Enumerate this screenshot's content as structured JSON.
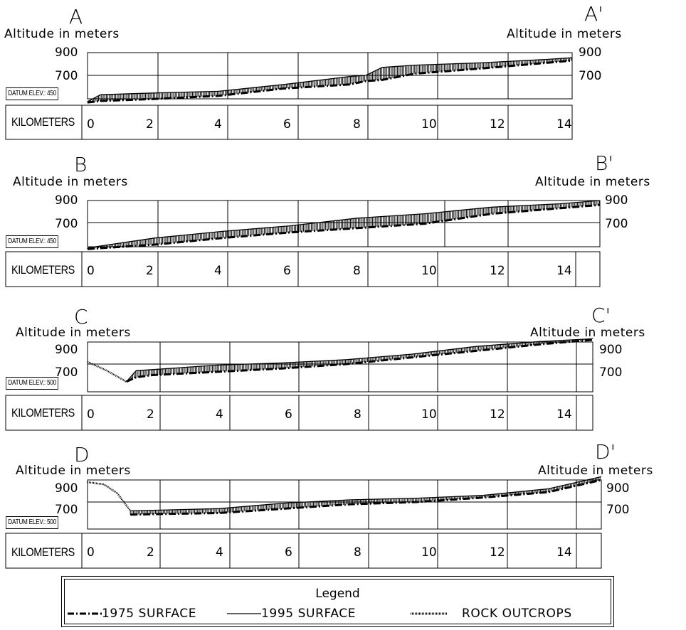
{
  "chart_data": [
    {
      "type": "line",
      "profile": "A",
      "start_label": "A",
      "end_label": "A'",
      "left_axis_label": "Altitude in meters",
      "right_axis_label": "Altitude in meters",
      "y_ticks": [
        "900",
        "700"
      ],
      "datum_label": "DATUM ELEV.: 450",
      "km_label": "KILOMETERS",
      "km_ticks": [
        "0",
        "2",
        "4",
        "6",
        "8",
        "10",
        "12",
        "14"
      ],
      "xlim": [
        0,
        14.8
      ],
      "series": [
        {
          "name": "1975 SURFACE",
          "x": [
            0,
            0.4,
            2,
            4,
            6,
            8,
            8.5,
            9.0,
            10,
            12,
            14,
            14.8
          ],
          "y": [
            462,
            475,
            492,
            520,
            585,
            620,
            650,
            660,
            715,
            760,
            810,
            830
          ]
        },
        {
          "name": "1995 SURFACE",
          "x": [
            0,
            0.4,
            2,
            4,
            6,
            8,
            8.5,
            9.0,
            10,
            12,
            14,
            14.8
          ],
          "y": [
            470,
            530,
            545,
            560,
            620,
            690,
            700,
            770,
            790,
            810,
            840,
            855
          ]
        }
      ]
    },
    {
      "type": "line",
      "profile": "B",
      "start_label": "B",
      "end_label": "B'",
      "left_axis_label": "Altitude in meters",
      "right_axis_label": "Altitude in meters",
      "y_ticks": [
        "900",
        "700"
      ],
      "datum_label": "DATUM ELEV.: 450",
      "km_label": "KILOMETERS",
      "km_ticks": [
        "0",
        "2",
        "4",
        "6",
        "8",
        "10",
        "12",
        "14"
      ],
      "xlim": [
        0,
        15.2
      ],
      "series": [
        {
          "name": "1975 SURFACE",
          "x": [
            0,
            2,
            4,
            6,
            8,
            10,
            12,
            14,
            15.2
          ],
          "y": [
            460,
            500,
            560,
            610,
            650,
            690,
            780,
            830,
            860
          ]
        },
        {
          "name": "1995 SURFACE",
          "x": [
            0,
            2,
            4,
            6,
            8,
            10,
            12,
            14,
            15.2
          ],
          "y": [
            470,
            560,
            620,
            670,
            740,
            780,
            840,
            870,
            900
          ]
        }
      ]
    },
    {
      "type": "line",
      "profile": "C",
      "start_label": "C",
      "end_label": "C'",
      "left_axis_label": "Altitude in meters",
      "right_axis_label": "Altitude in meters",
      "y_ticks": [
        "900",
        "700"
      ],
      "datum_label": "DATUM ELEV.: 500",
      "km_label": "KILOMETERS",
      "km_ticks": [
        "0",
        "2",
        "4",
        "6",
        "8",
        "10",
        "12",
        "14"
      ],
      "xlim": [
        0,
        15.6
      ],
      "series": [
        {
          "name": "ROCK OUTCROPS",
          "x": [
            0,
            0.6,
            1.2
          ],
          "y": [
            720,
            640,
            540
          ]
        },
        {
          "name": "1975 SURFACE",
          "x": [
            1.2,
            1.5,
            2,
            4,
            6,
            8,
            10,
            12,
            14,
            15.6
          ],
          "y": [
            540,
            580,
            600,
            630,
            660,
            700,
            760,
            820,
            880,
            920
          ]
        },
        {
          "name": "1995 SURFACE",
          "x": [
            1.2,
            1.5,
            2,
            4,
            6,
            8,
            10,
            12,
            14,
            15.6
          ],
          "y": [
            540,
            640,
            650,
            690,
            710,
            740,
            790,
            860,
            905,
            930
          ]
        }
      ]
    },
    {
      "type": "line",
      "profile": "D",
      "start_label": "D",
      "end_label": "D'",
      "left_axis_label": "Altitude in meters",
      "right_axis_label": "Altitude in meters",
      "y_ticks": [
        "900",
        "700"
      ],
      "datum_label": "DATUM ELEV.: 500",
      "km_label": "KILOMETERS",
      "km_ticks": [
        "0",
        "2",
        "4",
        "6",
        "8",
        "10",
        "12",
        "14"
      ],
      "xlim": [
        0,
        15.6
      ],
      "series": [
        {
          "name": "ROCK OUTCROPS",
          "x": [
            0,
            0.5,
            0.9,
            1.3
          ],
          "y": [
            880,
            860,
            780,
            620
          ]
        },
        {
          "name": "1975 SURFACE",
          "x": [
            1.3,
            2,
            4,
            6,
            8,
            10,
            12,
            14,
            15.6
          ],
          "y": [
            585,
            590,
            600,
            640,
            680,
            700,
            740,
            790,
            900
          ]
        },
        {
          "name": "1995 SURFACE",
          "x": [
            1.3,
            2,
            4,
            6,
            8,
            10,
            12,
            14,
            15.6
          ],
          "y": [
            620,
            625,
            640,
            690,
            720,
            735,
            760,
            820,
            930
          ]
        }
      ]
    }
  ],
  "legend": {
    "title": "Legend",
    "items": [
      {
        "label": "1975 SURFACE",
        "style": "dash-dot"
      },
      {
        "label": "1995 SURFACE",
        "style": "solid"
      },
      {
        "label": "ROCK OUTCROPS",
        "style": "dotted"
      }
    ]
  }
}
